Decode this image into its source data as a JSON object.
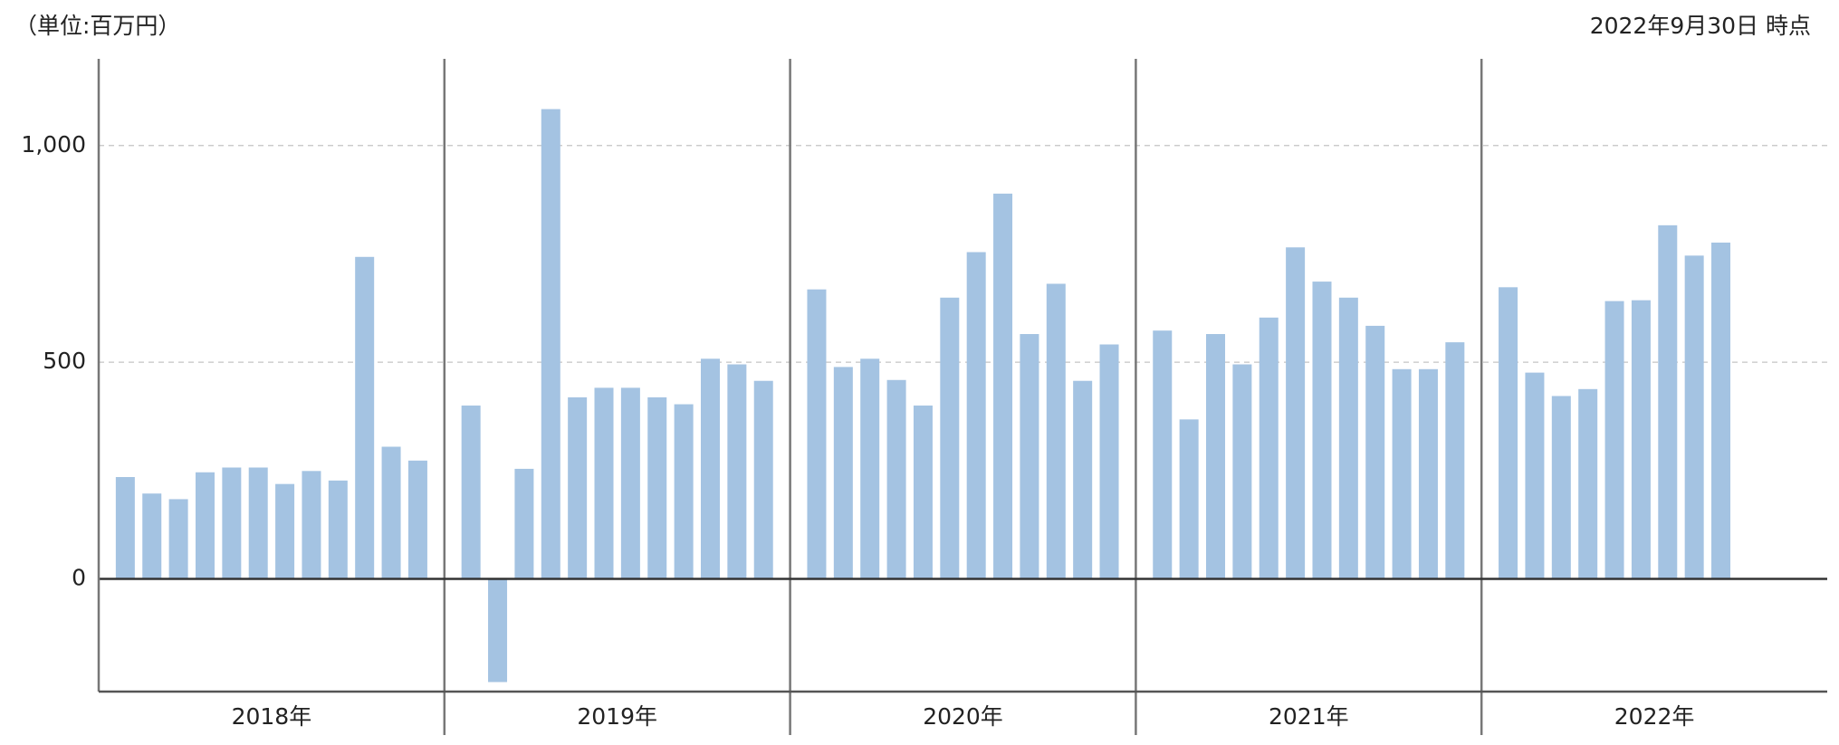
{
  "chart_data": {
    "type": "bar",
    "unit_label": "（単位:百万円）",
    "as_of": "2022年9月30日 時点",
    "color": "#a4c3e2",
    "grid": true,
    "ylim": [
      -260,
      1200
    ],
    "yticks": [
      0,
      500,
      {
        "value": 1000,
        "label": "1,000"
      }
    ],
    "groups": [
      {
        "name": "2018年",
        "values": [
          235,
          197,
          184,
          246,
          257,
          257,
          219,
          249,
          227,
          743,
          305,
          273
        ]
      },
      {
        "name": "2019年",
        "values": [
          400,
          -238,
          254,
          1084,
          419,
          441,
          441,
          419,
          403,
          508,
          495,
          457
        ]
      },
      {
        "name": "2020年",
        "values": [
          668,
          489,
          508,
          459,
          400,
          649,
          754,
          889,
          565,
          681,
          457,
          541
        ]
      },
      {
        "name": "2021年",
        "values": [
          573,
          368,
          565,
          495,
          603,
          765,
          686,
          649,
          584,
          484,
          484,
          546
        ]
      },
      {
        "name": "2022年",
        "values": [
          673,
          476,
          422,
          438,
          641,
          643,
          816,
          746,
          776
        ]
      }
    ]
  }
}
